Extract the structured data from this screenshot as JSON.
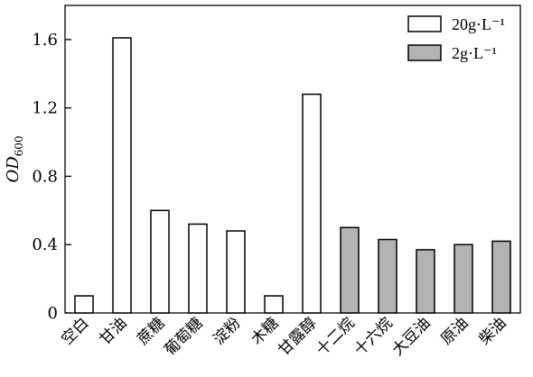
{
  "chart_data": {
    "type": "bar",
    "ylabel_main": "OD",
    "ylabel_sub": "600",
    "ylim": [
      0,
      1.8
    ],
    "yticks": [
      {
        "value": 0,
        "label": "0"
      },
      {
        "value": 0.4,
        "label": "0.4"
      },
      {
        "value": 0.8,
        "label": "0.8"
      },
      {
        "value": 1.2,
        "label": "1.2"
      },
      {
        "value": 1.6,
        "label": "1.6"
      }
    ],
    "categories": [
      "空白",
      "甘油",
      "蔗糖",
      "葡萄糖",
      "淀粉",
      "木糖",
      "甘露醇",
      "十二烷",
      "十六烷",
      "大豆油",
      "原油",
      "柴油"
    ],
    "series": [
      {
        "name": "20g·L⁻¹",
        "color": "#ffffff",
        "values": [
          0.1,
          1.61,
          0.6,
          0.52,
          0.48,
          0.1,
          1.28,
          null,
          null,
          null,
          null,
          null
        ]
      },
      {
        "name": "2g·L⁻¹",
        "color": "#b3b3b3",
        "values": [
          null,
          null,
          null,
          null,
          null,
          null,
          null,
          0.5,
          0.43,
          0.37,
          0.4,
          0.42
        ]
      }
    ],
    "legend_position": "top-right",
    "grid": false
  }
}
